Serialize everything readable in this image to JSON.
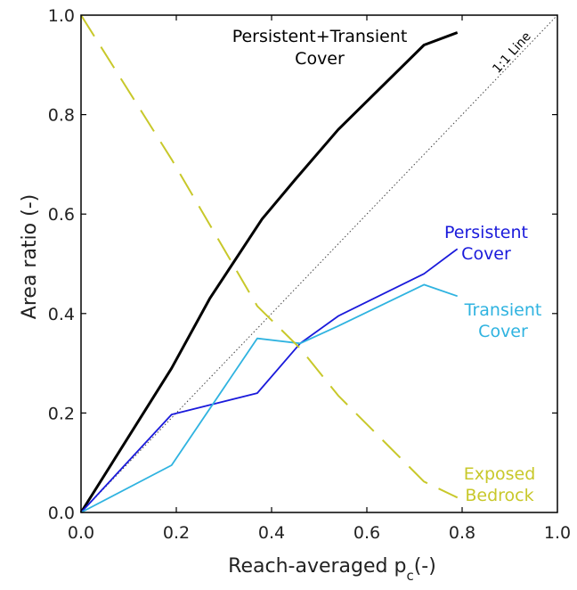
{
  "chart_data": {
    "type": "line",
    "xlabel": "Reach-averaged p",
    "xlabel_sub": "c",
    "xlabel_suffix": "(-)",
    "ylabel": "Area ratio (-)",
    "xlim": [
      0,
      1
    ],
    "ylim": [
      0,
      1
    ],
    "xticks": [
      "0.0",
      "0.2",
      "0.4",
      "0.6",
      "0.8",
      "1.0"
    ],
    "yticks": [
      "0.0",
      "0.2",
      "0.4",
      "0.6",
      "0.8",
      "1.0"
    ],
    "grid": false,
    "series": [
      {
        "label_lines": [
          "Persistent+Transient",
          "Cover"
        ],
        "color": "#000000",
        "style": "solid-thick",
        "x": [
          0,
          0.19,
          0.27,
          0.38,
          0.45,
          0.54,
          0.72,
          0.79
        ],
        "y": [
          0,
          0.29,
          0.43,
          0.59,
          0.67,
          0.77,
          0.94,
          0.965
        ]
      },
      {
        "label_lines": [
          "Persistent",
          "Cover"
        ],
        "color": "#1a1adb",
        "style": "solid",
        "x": [
          0,
          0.19,
          0.37,
          0.46,
          0.54,
          0.72,
          0.79
        ],
        "y": [
          0,
          0.197,
          0.24,
          0.34,
          0.395,
          0.48,
          0.53
        ]
      },
      {
        "label_lines": [
          "Transient",
          "Cover"
        ],
        "color": "#2fb3e0",
        "style": "solid",
        "x": [
          0,
          0.19,
          0.37,
          0.46,
          0.54,
          0.72,
          0.79
        ],
        "y": [
          0,
          0.095,
          0.35,
          0.34,
          0.375,
          0.458,
          0.435
        ]
      },
      {
        "label_lines": [
          "Exposed",
          "Bedrock"
        ],
        "color": "#c8c82a",
        "style": "dashed",
        "x": [
          0,
          0.19,
          0.37,
          0.46,
          0.54,
          0.72,
          0.79
        ],
        "y": [
          1.0,
          0.71,
          0.415,
          0.33,
          0.235,
          0.062,
          0.03
        ]
      }
    ],
    "reference_line": {
      "label": "1:1 Line",
      "x": [
        0,
        1
      ],
      "y": [
        0,
        1
      ],
      "color": "#444444",
      "style": "dotted"
    }
  }
}
